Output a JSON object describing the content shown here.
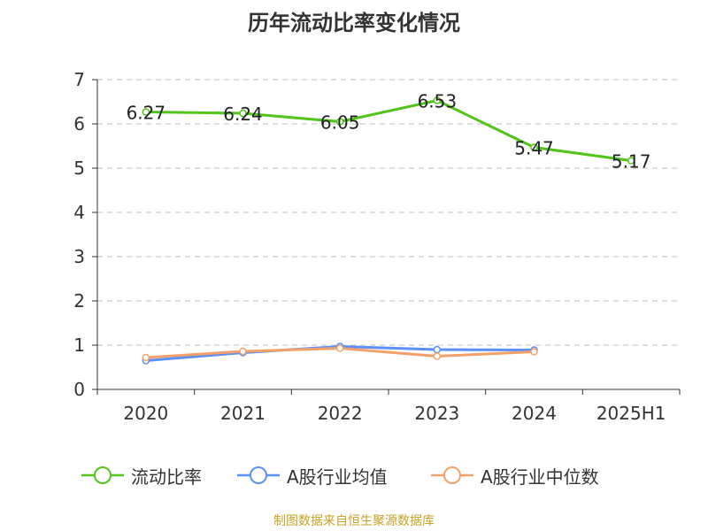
{
  "title": "历年流动比率变化情况",
  "source": "制图数据来自恒生聚源数据库",
  "chart_data": {
    "type": "line",
    "title": "历年流动比率变化情况",
    "categories": [
      "2020",
      "2021",
      "2022",
      "2023",
      "2024",
      "2025H1"
    ],
    "ylim": [
      0,
      7
    ],
    "yticks": [
      0,
      1,
      2,
      3,
      4,
      5,
      6,
      7
    ],
    "grid": true,
    "legend_position": "bottom",
    "series": [
      {
        "name": "流动比率",
        "color": "#52c41a",
        "values": [
          6.27,
          6.24,
          6.05,
          6.53,
          5.47,
          5.17
        ],
        "show_labels": true
      },
      {
        "name": "A股行业均值",
        "color": "#5b8ff9",
        "values": [
          0.65,
          0.83,
          0.97,
          0.9,
          0.89,
          null
        ],
        "show_labels": false
      },
      {
        "name": "A股行业中位数",
        "color": "#f4a06b",
        "values": [
          0.72,
          0.86,
          0.93,
          0.75,
          0.85,
          null
        ],
        "show_labels": false
      }
    ]
  }
}
